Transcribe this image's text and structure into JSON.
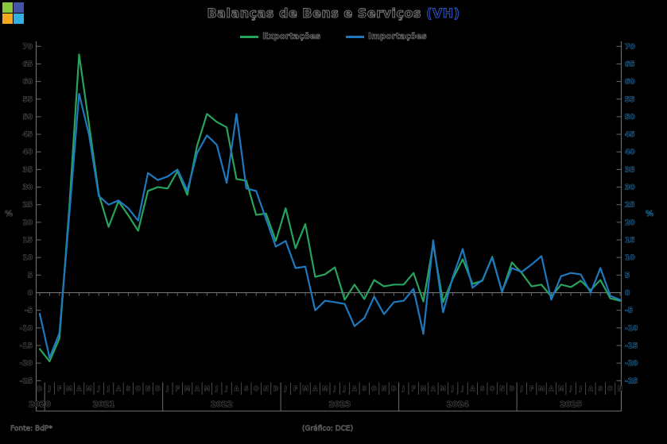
{
  "logo": {
    "squares": [
      {
        "name": "green-square",
        "color": "#8cc63e"
      },
      {
        "name": "indigo-square",
        "color": "#4355a8"
      },
      {
        "name": "amber-square",
        "color": "#f4a81d"
      },
      {
        "name": "cyan-square",
        "color": "#2fb0e0"
      }
    ]
  },
  "header": {
    "title_main": "Balanças de Bens e Serviços ",
    "title_suffix": "(VH)"
  },
  "footer": {
    "source": "Fonte: BdP*",
    "credit": "(Gráfico: DCE)"
  },
  "chart_data": {
    "type": "line",
    "title": "Balanças de Bens e Serviços (VH)",
    "ylabel_left": "%",
    "ylabel_right": "%",
    "ylim": [
      -25,
      70
    ],
    "ytick_step": 5,
    "grid": false,
    "legend_position": "top-center",
    "x_months": [
      "D",
      "J",
      "F",
      "M",
      "A",
      "M",
      "J",
      "J",
      "A",
      "S",
      "O",
      "N",
      "D",
      "J",
      "F",
      "M",
      "A",
      "M",
      "J",
      "J",
      "A",
      "S",
      "O",
      "N",
      "D",
      "J",
      "F",
      "M",
      "A",
      "M",
      "J",
      "J",
      "A",
      "S",
      "O",
      "N",
      "D",
      "J",
      "F",
      "M",
      "A",
      "M",
      "J",
      "J",
      "A",
      "S",
      "O",
      "N",
      "D",
      "J",
      "F",
      "M",
      "A",
      "M",
      "J",
      "J",
      "A",
      "S",
      "O",
      "N"
    ],
    "years": [
      {
        "label": "2020",
        "from": 0,
        "to": 0
      },
      {
        "label": "2021",
        "from": 1,
        "to": 12
      },
      {
        "label": "2022",
        "from": 13,
        "to": 24
      },
      {
        "label": "2023",
        "from": 25,
        "to": 36
      },
      {
        "label": "2024",
        "from": 37,
        "to": 48
      },
      {
        "label": "2025",
        "from": 49,
        "to": 59
      }
    ],
    "series": [
      {
        "name": "Exportações",
        "color": "#27a35d",
        "values": [
          -16,
          -19.5,
          -13,
          24,
          67.7,
          48,
          28,
          18.7,
          26,
          22,
          17.6,
          28.9,
          30,
          29.6,
          34.5,
          27.8,
          41.8,
          50.8,
          48.5,
          47,
          32.3,
          31.8,
          22.1,
          22.5,
          14.7,
          24,
          12.6,
          19.5,
          4.5,
          5.2,
          7.2,
          -2,
          2.3,
          -1.8,
          3.6,
          1.8,
          2.3,
          2.3,
          5.6,
          -2.5,
          13.8,
          -2.7,
          4,
          9.5,
          2.5,
          3.4,
          10.2,
          0.2,
          8.6,
          5.6,
          1.8,
          2.3,
          -1.1,
          2.3,
          1.6,
          3.4,
          0.7,
          3.6,
          -1.6,
          -2.3
        ]
      },
      {
        "name": "Importações",
        "color": "#1f78bd",
        "values": [
          -6,
          -18.5,
          -11.5,
          22,
          56.5,
          45,
          27.5,
          25,
          26.2,
          24,
          20.5,
          34,
          32,
          33,
          35,
          29,
          39.7,
          44.7,
          42,
          31.2,
          50.8,
          29.6,
          28.9,
          21,
          13.1,
          14.7,
          7,
          7.4,
          -5,
          -2.3,
          -2.7,
          -3.2,
          -9.5,
          -7.2,
          -1.1,
          -6.1,
          -2.7,
          -2.3,
          1.1,
          -11.7,
          14.9,
          -5.6,
          4.5,
          12.4,
          1.4,
          3.6,
          10,
          0.3,
          7,
          5.9,
          8,
          10.4,
          -2,
          4.7,
          5.6,
          5.2,
          0,
          7,
          -0.9,
          -2
        ]
      }
    ],
    "axis_colors": {
      "spine": "#6a6a6a",
      "left_labels": "#6e6e6e",
      "right_labels": "#2e8fd0"
    }
  }
}
